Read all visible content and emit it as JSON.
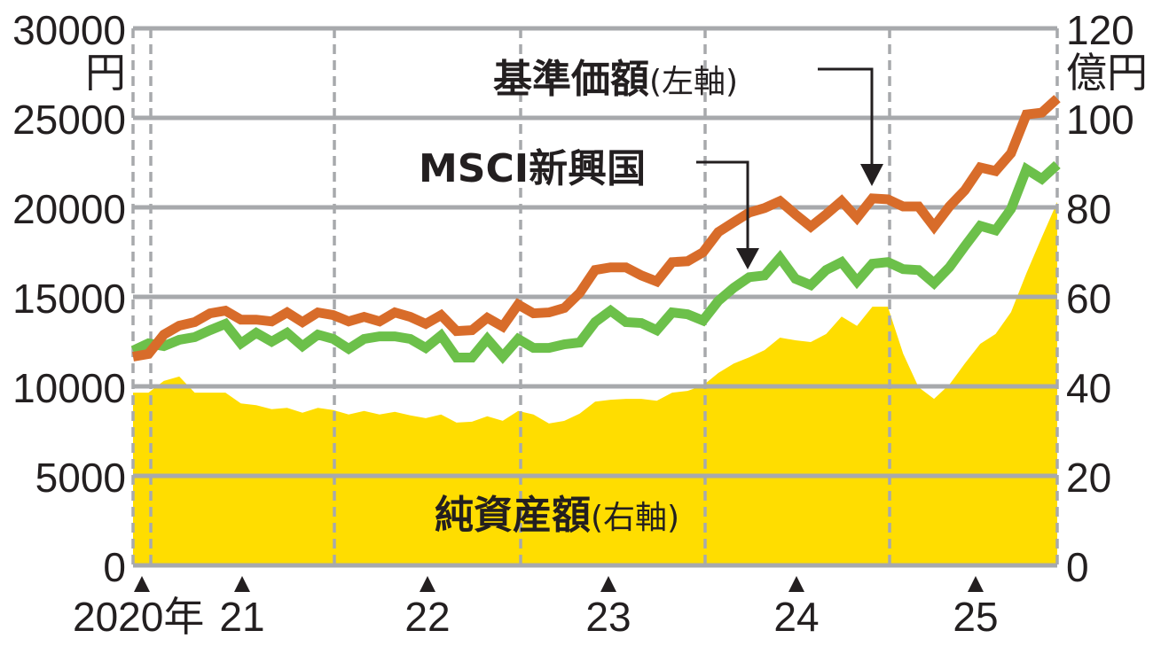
{
  "chart_data": {
    "type": "line",
    "title": "",
    "left_axis": {
      "ticks": [
        "0",
        "5000",
        "10000",
        "15000",
        "20000",
        "25000",
        "30000"
      ],
      "unit": "円",
      "ylim": [
        0,
        30000
      ]
    },
    "right_axis": {
      "ticks": [
        "0",
        "20",
        "40",
        "60",
        "80",
        "100",
        "120"
      ],
      "unit": "億円",
      "ylim": [
        0,
        120
      ]
    },
    "x_labels": [
      "2020年",
      "21",
      "22",
      "23",
      "24",
      "25"
    ],
    "grid": true,
    "series": [
      {
        "name": "基準価額",
        "axis_note": "(左軸)",
        "type": "line",
        "axis": "left",
        "color": "#d86c2a",
        "values": [
          11660,
          11810,
          12890,
          13390,
          13590,
          14080,
          14230,
          13730,
          13730,
          13630,
          14130,
          13590,
          14130,
          13980,
          13630,
          13880,
          13630,
          14130,
          13880,
          13490,
          13980,
          13090,
          13140,
          13830,
          13340,
          14570,
          14080,
          14130,
          14380,
          15220,
          16500,
          16650,
          16650,
          16200,
          15860,
          16940,
          16990,
          17490,
          18620,
          19170,
          19710,
          19960,
          20350,
          19610,
          18920,
          19610,
          20350,
          19410,
          20500,
          20450,
          20050,
          20050,
          18920,
          20050,
          20950,
          22230,
          22030,
          23020,
          25190,
          25290,
          26080
        ]
      },
      {
        "name": "MSCI新興国",
        "type": "line",
        "axis": "left",
        "color": "#6cc04a",
        "values": [
          12000,
          12400,
          12250,
          12600,
          12750,
          13140,
          13490,
          12400,
          12990,
          12500,
          12990,
          12250,
          12890,
          12650,
          12100,
          12650,
          12790,
          12790,
          12650,
          12150,
          12840,
          11610,
          11610,
          12650,
          11660,
          12650,
          12150,
          12150,
          12350,
          12450,
          13590,
          14230,
          13590,
          13540,
          13140,
          14130,
          14030,
          13680,
          14770,
          15510,
          16100,
          16200,
          17190,
          16010,
          15660,
          16500,
          16940,
          15860,
          16850,
          16940,
          16550,
          16500,
          15760,
          16650,
          17830,
          18970,
          18720,
          19910,
          22130,
          21590,
          22380
        ]
      },
      {
        "name": "純資産額",
        "axis_note": "(右軸)",
        "type": "area",
        "axis": "right",
        "color": "#ffdd00",
        "values": [
          38.6,
          38.6,
          41.2,
          42.2,
          38.6,
          38.6,
          38.6,
          36.2,
          35.8,
          34.9,
          35.2,
          34.1,
          35.2,
          34.7,
          33.7,
          34.5,
          33.7,
          34.3,
          33.5,
          32.9,
          33.7,
          31.9,
          32.1,
          33.3,
          32.3,
          34.5,
          33.7,
          31.7,
          32.3,
          33.9,
          36.6,
          37.0,
          37.2,
          37.2,
          36.8,
          38.6,
          39.0,
          40.2,
          43.0,
          45.1,
          46.5,
          48.1,
          50.9,
          50.3,
          49.9,
          51.7,
          55.6,
          53.5,
          57.8,
          57.8,
          47.3,
          39.8,
          37.2,
          40.4,
          45.1,
          49.5,
          51.7,
          56.6,
          65.3,
          73.3,
          81.2
        ]
      }
    ]
  },
  "colors": {
    "grid": "#a7a9ac",
    "text": "#231f20"
  }
}
